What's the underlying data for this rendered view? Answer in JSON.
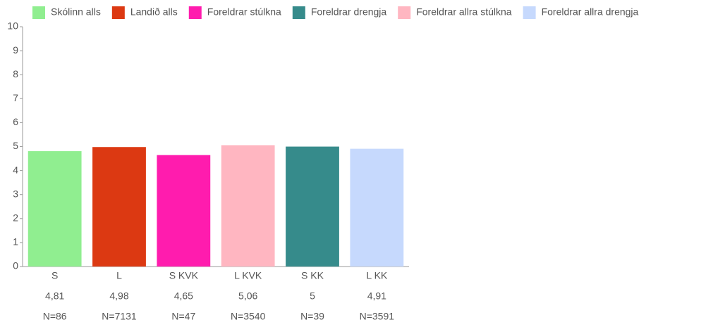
{
  "chart_data": {
    "type": "bar",
    "legend": [
      {
        "name": "Skólinn alls",
        "color": "#90ee90"
      },
      {
        "name": "Landið alls",
        "color": "#dc3912"
      },
      {
        "name": "Foreldrar stúlkna",
        "color": "#ff1cae"
      },
      {
        "name": "Foreldrar drengja",
        "color": "#368b8b"
      },
      {
        "name": "Foreldrar allra stúlkna",
        "color": "#ffb6c1"
      },
      {
        "name": "Foreldrar allra drengja",
        "color": "#c6d9fd"
      }
    ],
    "categories": [
      "S",
      "L",
      "S KVK",
      "L KVK",
      "S KK",
      "L KK"
    ],
    "values": [
      4.81,
      4.98,
      4.65,
      5.06,
      5,
      4.91
    ],
    "value_labels": [
      "4,81",
      "4,98",
      "4,65",
      "5,06",
      "5",
      "4,91"
    ],
    "n_labels": [
      "N=86",
      "N=7131",
      "N=47",
      "N=3540",
      "N=39",
      "N=3591"
    ],
    "colors": [
      "#90ee90",
      "#dc3912",
      "#ff1cae",
      "#ffb6c1",
      "#368b8b",
      "#c6d9fd"
    ],
    "ylim": [
      0,
      10
    ],
    "yticks": [
      0,
      1,
      2,
      3,
      4,
      5,
      6,
      7,
      8,
      9,
      10
    ],
    "grid": false
  }
}
